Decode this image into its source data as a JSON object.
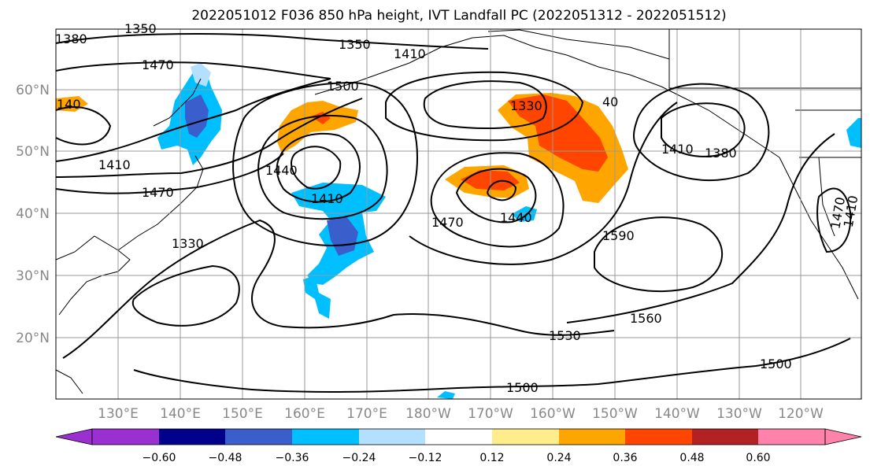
{
  "title": "2022051012 F036 850 hPa height, IVT Landfall PC (2022051312 - 2022051512)",
  "lat_labels": [
    "60°N",
    "50°N",
    "40°N",
    "30°N",
    "20°N"
  ],
  "lon_labels": [
    "130°E",
    "140°E",
    "150°E",
    "160°E",
    "170°E",
    "180°W",
    "170°W",
    "160°W",
    "150°W",
    "140°W",
    "130°W",
    "120°W"
  ],
  "contour_labels": [
    "1380",
    "1350",
    "1350",
    "1410",
    "1470",
    "1500",
    "140",
    "1410",
    "1470",
    "1330",
    "1440",
    "1410",
    "1330",
    "40",
    "1410",
    "1380",
    "1470",
    "1440",
    "1590",
    "1560",
    "1530",
    "1500",
    "1500",
    "1470",
    "1410"
  ],
  "colorbar": {
    "ticks": [
      "−0.60",
      "−0.48",
      "−0.36",
      "−0.24",
      "−0.12",
      "0.12",
      "0.24",
      "0.36",
      "0.48",
      "0.60"
    ],
    "colors": [
      "#9b30d0",
      "#00008b",
      "#3a5fcd",
      "#00bfff",
      "#b3e0ff",
      "#ffffff",
      "#ffec8b",
      "#ffa500",
      "#ff4500",
      "#b22222",
      "#ff82ab"
    ]
  }
}
